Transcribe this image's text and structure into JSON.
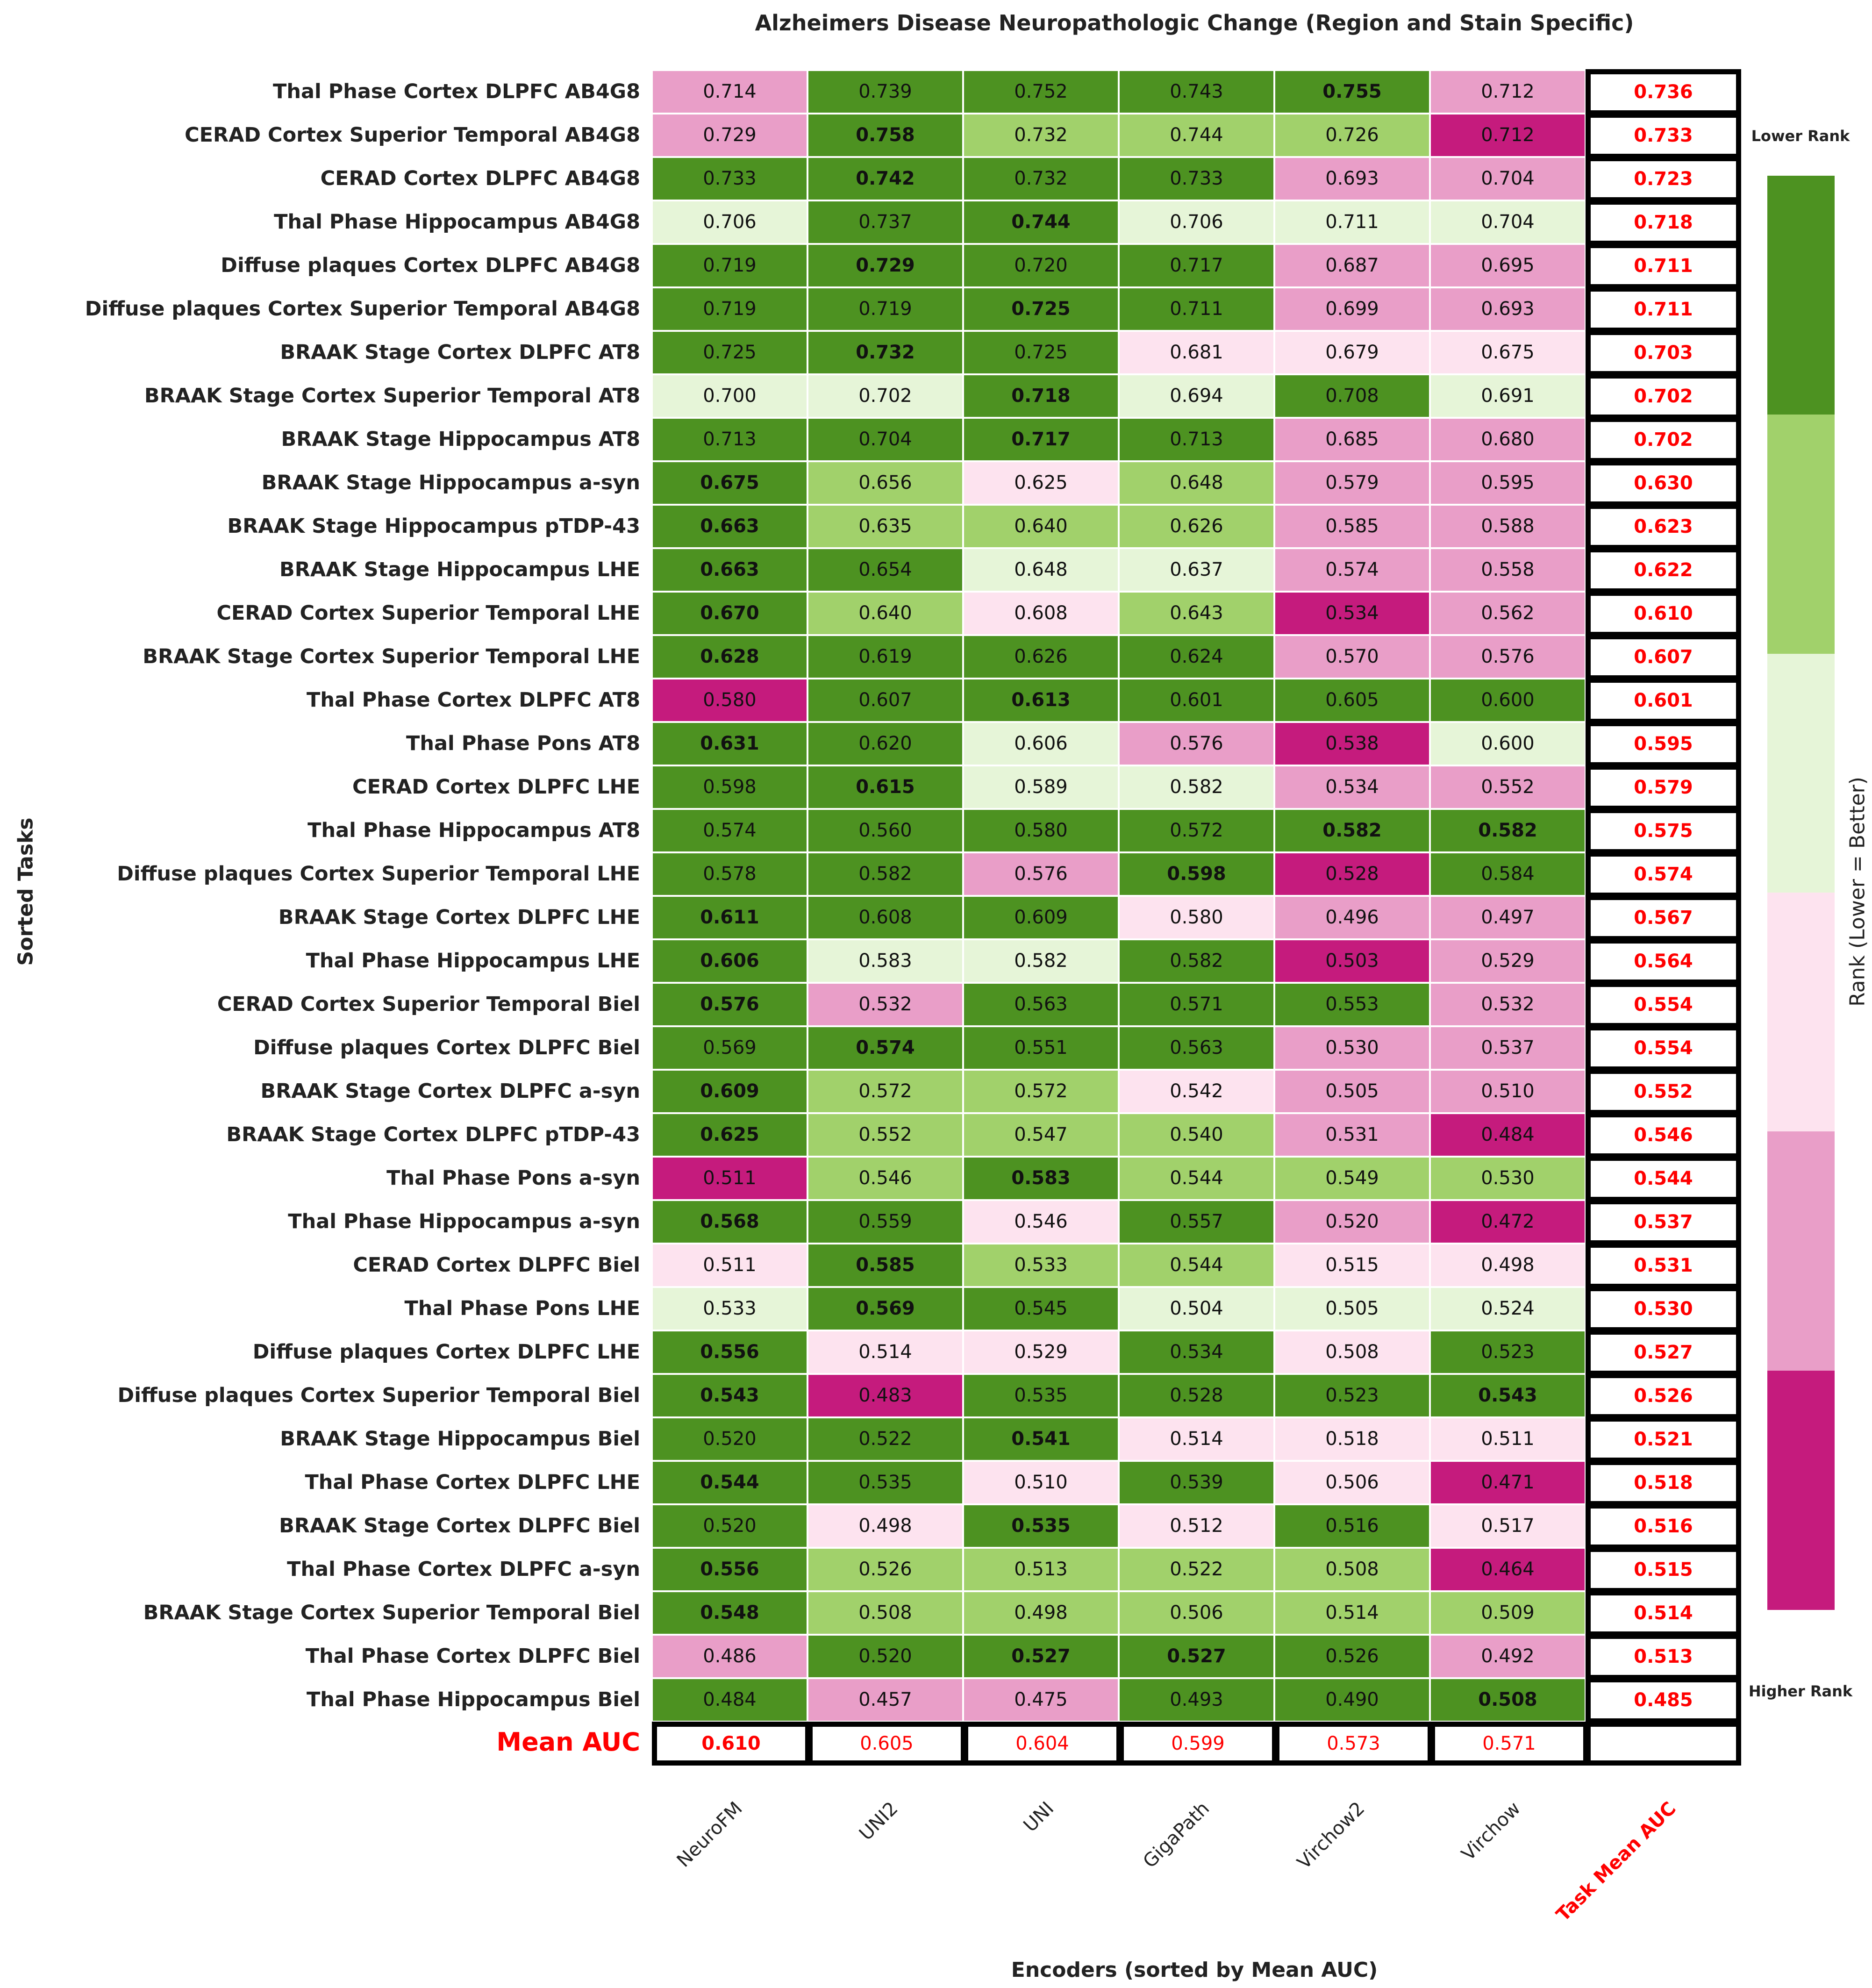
{
  "chart_data": {
    "type": "heatmap",
    "title": "Alzheimers Disease Neuropathologic Change (Region and Stain Specific)",
    "xlabel": "Encoders (sorted by Mean AUC)",
    "ylabel": "Sorted Tasks",
    "columns": [
      "NeuroFM",
      "UNI2",
      "UNI",
      "GigaPath",
      "Virchow2",
      "Virchow"
    ],
    "task_mean_header": "Task Mean AUC",
    "mean_row_label": "Mean AUC",
    "mean_auc": [
      0.61,
      0.605,
      0.604,
      0.599,
      0.573,
      0.571
    ],
    "colorbar": {
      "label": "Rank (Lower = Better)",
      "top_note": "Lower Rank",
      "bottom_note": "Higher Rank",
      "colors": [
        "#4d9221",
        "#a1d16b",
        "#e6f5d8",
        "#fde3ef",
        "#e99ec8",
        "#c51b7d"
      ]
    },
    "rows": [
      {
        "task": "Thal Phase Cortex DLPFC AB4G8",
        "values": [
          0.714,
          0.739,
          0.752,
          0.743,
          0.755,
          0.712
        ],
        "rank_color": [
          5,
          1,
          1,
          1,
          1,
          5
        ],
        "mean": 0.736
      },
      {
        "task": "CERAD Cortex Superior Temporal AB4G8",
        "values": [
          0.729,
          0.758,
          0.732,
          0.744,
          0.726,
          0.712
        ],
        "rank_color": [
          5,
          1,
          2,
          2,
          2,
          6
        ],
        "mean": 0.733
      },
      {
        "task": "CERAD Cortex DLPFC AB4G8",
        "values": [
          0.733,
          0.742,
          0.732,
          0.733,
          0.693,
          0.704
        ],
        "rank_color": [
          1,
          1,
          1,
          1,
          5,
          5
        ],
        "mean": 0.723
      },
      {
        "task": "Thal Phase Hippocampus AB4G8",
        "values": [
          0.706,
          0.737,
          0.744,
          0.706,
          0.711,
          0.704
        ],
        "rank_color": [
          3,
          1,
          1,
          3,
          3,
          3
        ],
        "mean": 0.718
      },
      {
        "task": "Diffuse plaques Cortex DLPFC AB4G8",
        "values": [
          0.719,
          0.729,
          0.72,
          0.717,
          0.687,
          0.695
        ],
        "rank_color": [
          1,
          1,
          1,
          1,
          5,
          5
        ],
        "mean": 0.711
      },
      {
        "task": "Diffuse plaques Cortex Superior Temporal AB4G8",
        "values": [
          0.719,
          0.719,
          0.725,
          0.711,
          0.699,
          0.693
        ],
        "rank_color": [
          1,
          1,
          1,
          1,
          5,
          5
        ],
        "mean": 0.711
      },
      {
        "task": "BRAAK Stage Cortex DLPFC AT8",
        "values": [
          0.725,
          0.732,
          0.725,
          0.681,
          0.679,
          0.675
        ],
        "rank_color": [
          1,
          1,
          1,
          4,
          4,
          4
        ],
        "mean": 0.703
      },
      {
        "task": "BRAAK Stage Cortex Superior Temporal AT8",
        "values": [
          0.7,
          0.702,
          0.718,
          0.694,
          0.708,
          0.691
        ],
        "rank_color": [
          3,
          3,
          1,
          3,
          1,
          3
        ],
        "mean": 0.702
      },
      {
        "task": "BRAAK Stage Hippocampus AT8",
        "values": [
          0.713,
          0.704,
          0.717,
          0.713,
          0.685,
          0.68
        ],
        "rank_color": [
          1,
          1,
          1,
          1,
          5,
          5
        ],
        "mean": 0.702
      },
      {
        "task": "BRAAK Stage Hippocampus a-syn",
        "values": [
          0.675,
          0.656,
          0.625,
          0.648,
          0.579,
          0.595
        ],
        "rank_color": [
          1,
          2,
          4,
          2,
          5,
          5
        ],
        "mean": 0.63
      },
      {
        "task": "BRAAK Stage Hippocampus pTDP-43",
        "values": [
          0.663,
          0.635,
          0.64,
          0.626,
          0.585,
          0.588
        ],
        "rank_color": [
          1,
          2,
          2,
          2,
          5,
          5
        ],
        "mean": 0.623
      },
      {
        "task": "BRAAK Stage Hippocampus LHE",
        "values": [
          0.663,
          0.654,
          0.648,
          0.637,
          0.574,
          0.558
        ],
        "rank_color": [
          1,
          1,
          3,
          3,
          5,
          5
        ],
        "mean": 0.622
      },
      {
        "task": "CERAD Cortex Superior Temporal LHE",
        "values": [
          0.67,
          0.64,
          0.608,
          0.643,
          0.534,
          0.562
        ],
        "rank_color": [
          1,
          2,
          4,
          2,
          6,
          5
        ],
        "mean": 0.61
      },
      {
        "task": "BRAAK Stage Cortex Superior Temporal LHE",
        "values": [
          0.628,
          0.619,
          0.626,
          0.624,
          0.57,
          0.576
        ],
        "rank_color": [
          1,
          1,
          1,
          1,
          5,
          5
        ],
        "mean": 0.607
      },
      {
        "task": "Thal Phase Cortex DLPFC AT8",
        "values": [
          0.58,
          0.607,
          0.613,
          0.601,
          0.605,
          0.6
        ],
        "rank_color": [
          6,
          1,
          1,
          1,
          1,
          1
        ],
        "mean": 0.601
      },
      {
        "task": "Thal Phase Pons AT8",
        "values": [
          0.631,
          0.62,
          0.606,
          0.576,
          0.538,
          0.6
        ],
        "rank_color": [
          1,
          1,
          3,
          5,
          6,
          3
        ],
        "mean": 0.595
      },
      {
        "task": "CERAD Cortex DLPFC LHE",
        "values": [
          0.598,
          0.615,
          0.589,
          0.582,
          0.534,
          0.552
        ],
        "rank_color": [
          1,
          1,
          3,
          3,
          5,
          5
        ],
        "mean": 0.579
      },
      {
        "task": "Thal Phase Hippocampus AT8",
        "values": [
          0.574,
          0.56,
          0.58,
          0.572,
          0.582,
          0.582
        ],
        "rank_color": [
          1,
          1,
          1,
          1,
          1,
          1
        ],
        "mean": 0.575
      },
      {
        "task": "Diffuse plaques Cortex Superior Temporal LHE",
        "values": [
          0.578,
          0.582,
          0.576,
          0.598,
          0.528,
          0.584
        ],
        "rank_color": [
          1,
          1,
          5,
          1,
          6,
          1
        ],
        "mean": 0.574
      },
      {
        "task": "BRAAK Stage Cortex DLPFC LHE",
        "values": [
          0.611,
          0.608,
          0.609,
          0.58,
          0.496,
          0.497
        ],
        "rank_color": [
          1,
          1,
          1,
          4,
          5,
          5
        ],
        "mean": 0.567
      },
      {
        "task": "Thal Phase Hippocampus LHE",
        "values": [
          0.606,
          0.583,
          0.582,
          0.582,
          0.503,
          0.529
        ],
        "rank_color": [
          1,
          3,
          3,
          1,
          6,
          5
        ],
        "mean": 0.564
      },
      {
        "task": "CERAD Cortex Superior Temporal Biel",
        "values": [
          0.576,
          0.532,
          0.563,
          0.571,
          0.553,
          0.532
        ],
        "rank_color": [
          1,
          5,
          1,
          1,
          1,
          5
        ],
        "mean": 0.554
      },
      {
        "task": "Diffuse plaques Cortex DLPFC Biel",
        "values": [
          0.569,
          0.574,
          0.551,
          0.563,
          0.53,
          0.537
        ],
        "rank_color": [
          1,
          1,
          1,
          1,
          5,
          5
        ],
        "mean": 0.554
      },
      {
        "task": "BRAAK Stage Cortex DLPFC a-syn",
        "values": [
          0.609,
          0.572,
          0.572,
          0.542,
          0.505,
          0.51
        ],
        "rank_color": [
          1,
          2,
          2,
          4,
          5,
          5
        ],
        "mean": 0.552
      },
      {
        "task": "BRAAK Stage Cortex DLPFC pTDP-43",
        "values": [
          0.625,
          0.552,
          0.547,
          0.54,
          0.531,
          0.484
        ],
        "rank_color": [
          1,
          2,
          2,
          2,
          5,
          6
        ],
        "mean": 0.546
      },
      {
        "task": "Thal Phase Pons a-syn",
        "values": [
          0.511,
          0.546,
          0.583,
          0.544,
          0.549,
          0.53
        ],
        "rank_color": [
          6,
          2,
          1,
          2,
          2,
          2
        ],
        "mean": 0.544
      },
      {
        "task": "Thal Phase Hippocampus a-syn",
        "values": [
          0.568,
          0.559,
          0.546,
          0.557,
          0.52,
          0.472
        ],
        "rank_color": [
          1,
          1,
          4,
          1,
          5,
          6
        ],
        "mean": 0.537
      },
      {
        "task": "CERAD Cortex DLPFC Biel",
        "values": [
          0.511,
          0.585,
          0.533,
          0.544,
          0.515,
          0.498
        ],
        "rank_color": [
          4,
          1,
          2,
          2,
          4,
          4
        ],
        "mean": 0.531
      },
      {
        "task": "Thal Phase Pons LHE",
        "values": [
          0.533,
          0.569,
          0.545,
          0.504,
          0.505,
          0.524
        ],
        "rank_color": [
          3,
          1,
          1,
          3,
          3,
          3
        ],
        "mean": 0.53
      },
      {
        "task": "Diffuse plaques Cortex DLPFC LHE",
        "values": [
          0.556,
          0.514,
          0.529,
          0.534,
          0.508,
          0.523
        ],
        "rank_color": [
          1,
          4,
          4,
          1,
          4,
          1
        ],
        "mean": 0.527
      },
      {
        "task": "Diffuse plaques Cortex Superior Temporal Biel",
        "values": [
          0.543,
          0.483,
          0.535,
          0.528,
          0.523,
          0.543
        ],
        "rank_color": [
          1,
          6,
          1,
          1,
          1,
          1
        ],
        "mean": 0.526
      },
      {
        "task": "BRAAK Stage Hippocampus Biel",
        "values": [
          0.52,
          0.522,
          0.541,
          0.514,
          0.518,
          0.511
        ],
        "rank_color": [
          1,
          1,
          1,
          4,
          4,
          4
        ],
        "mean": 0.521
      },
      {
        "task": "Thal Phase Cortex DLPFC LHE",
        "values": [
          0.544,
          0.535,
          0.51,
          0.539,
          0.506,
          0.471
        ],
        "rank_color": [
          1,
          1,
          4,
          1,
          4,
          6
        ],
        "mean": 0.518
      },
      {
        "task": "BRAAK Stage Cortex DLPFC Biel",
        "values": [
          0.52,
          0.498,
          0.535,
          0.512,
          0.516,
          0.517
        ],
        "rank_color": [
          1,
          4,
          1,
          4,
          1,
          4
        ],
        "mean": 0.516
      },
      {
        "task": "Thal Phase Cortex DLPFC a-syn",
        "values": [
          0.556,
          0.526,
          0.513,
          0.522,
          0.508,
          0.464
        ],
        "rank_color": [
          1,
          2,
          2,
          2,
          2,
          6
        ],
        "mean": 0.515
      },
      {
        "task": "BRAAK Stage Cortex Superior Temporal Biel",
        "values": [
          0.548,
          0.508,
          0.498,
          0.506,
          0.514,
          0.509
        ],
        "rank_color": [
          1,
          2,
          2,
          2,
          2,
          2
        ],
        "mean": 0.514
      },
      {
        "task": "Thal Phase Cortex DLPFC Biel",
        "values": [
          0.486,
          0.52,
          0.527,
          0.527,
          0.526,
          0.492
        ],
        "rank_color": [
          5,
          1,
          1,
          1,
          1,
          5
        ],
        "mean": 0.513
      },
      {
        "task": "Thal Phase Hippocampus Biel",
        "values": [
          0.484,
          0.457,
          0.475,
          0.493,
          0.49,
          0.508
        ],
        "rank_color": [
          1,
          5,
          5,
          1,
          1,
          1
        ],
        "mean": 0.485
      }
    ]
  }
}
